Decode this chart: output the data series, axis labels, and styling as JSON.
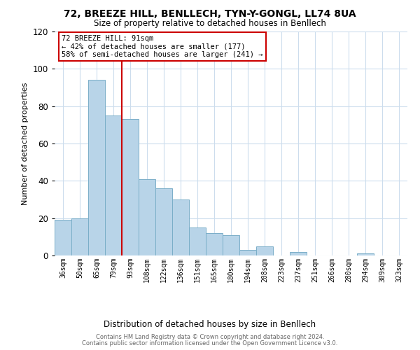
{
  "title": "72, BREEZE HILL, BENLLECH, TYN-Y-GONGL, LL74 8UA",
  "subtitle": "Size of property relative to detached houses in Benllech",
  "xlabel": "Distribution of detached houses by size in Benllech",
  "ylabel": "Number of detached properties",
  "bar_labels": [
    "36sqm",
    "50sqm",
    "65sqm",
    "79sqm",
    "93sqm",
    "108sqm",
    "122sqm",
    "136sqm",
    "151sqm",
    "165sqm",
    "180sqm",
    "194sqm",
    "208sqm",
    "223sqm",
    "237sqm",
    "251sqm",
    "266sqm",
    "280sqm",
    "294sqm",
    "309sqm",
    "323sqm"
  ],
  "bar_values": [
    19,
    20,
    94,
    75,
    73,
    41,
    36,
    30,
    15,
    12,
    11,
    3,
    5,
    0,
    2,
    0,
    0,
    0,
    1,
    0,
    0
  ],
  "bar_color": "#b8d4e8",
  "bar_edge_color": "#7aaec8",
  "reference_line_color": "#cc0000",
  "annotation_line1": "72 BREEZE HILL: 91sqm",
  "annotation_line2": "← 42% of detached houses are smaller (177)",
  "annotation_line3": "58% of semi-detached houses are larger (241) →",
  "annotation_box_color": "#ffffff",
  "annotation_box_edge": "#cc0000",
  "ylim": [
    0,
    120
  ],
  "yticks": [
    0,
    20,
    40,
    60,
    80,
    100,
    120
  ],
  "footer_line1": "Contains HM Land Registry data © Crown copyright and database right 2024.",
  "footer_line2": "Contains public sector information licensed under the Open Government Licence v3.0.",
  "background_color": "#ffffff",
  "grid_color": "#ccdded"
}
